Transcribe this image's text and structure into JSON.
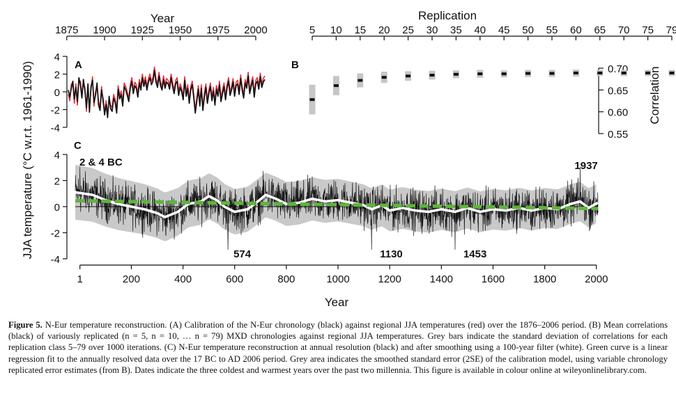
{
  "colors": {
    "axis": "#111111",
    "recon": "#111111",
    "instrumental": "#e8323c",
    "smooth": "#ffffff",
    "regression": "#5db53a",
    "error_band": "#c9c9c9",
    "sd_bar": "#c6c6c6"
  },
  "chart_data": [
    {
      "id": "A",
      "type": "line",
      "panel_label": "A",
      "title": "Year",
      "x_range": [
        1876,
        2006
      ],
      "y_range": [
        -4,
        4
      ],
      "x_ticks": [
        1875,
        1900,
        1925,
        1950,
        1975,
        2000
      ],
      "y_ticks": [
        -4,
        -2,
        0,
        2,
        4
      ],
      "series": [
        {
          "name": "N-Eur chronology",
          "color": "black",
          "step": 1,
          "values": [
            0.2,
            -0.6,
            0.4,
            1.2,
            -0.8,
            0.5,
            -1.1,
            1.6,
            0.8,
            -0.7,
            1.4,
            0.1,
            -1.8,
            0.9,
            -2.3,
            0.6,
            1.3,
            -1.2,
            -0.4,
            1.0,
            -1.5,
            -2.1,
            0.2,
            -0.8,
            -2.6,
            -1.4,
            -2.9,
            -0.5,
            -1.9,
            -2.2,
            -0.7,
            -1.2,
            -2.4,
            0.3,
            -0.8,
            -0.3,
            -1.6,
            0.6,
            0.2,
            -0.4,
            -1.1,
            0.4,
            1.2,
            -0.2,
            0.7,
            0.4,
            -0.6,
            1.0,
            0.2,
            1.6,
            0.6,
            1.3,
            0.2,
            1.1,
            1.6,
            0.8,
            1.2,
            2.4,
            1.1,
            0.5,
            1.8,
            0.7,
            0.2,
            1.4,
            0.4,
            1.1,
            0.9,
            0.3,
            1.6,
            0.6,
            -0.2,
            0.9,
            1.2,
            -0.4,
            0.5,
            0.0,
            -0.9,
            1.3,
            -0.5,
            0.4,
            -1.3,
            0.2,
            0.8,
            -0.7,
            -2.4,
            -1.1,
            0.3,
            -1.6,
            0.4,
            -2.1,
            -0.6,
            0.5,
            -1.3,
            -0.2,
            0.6,
            -1.0,
            0.1,
            -1.5,
            0.3,
            -0.5,
            0.8,
            -1.1,
            -0.2,
            0.6,
            -0.9,
            0.4,
            1.2,
            -0.4,
            0.2,
            1.1,
            -0.5,
            0.7,
            0.9,
            -0.3,
            1.5,
            0.2,
            -0.7,
            1.0,
            0.4,
            1.8,
            -0.2,
            0.6,
            1.3,
            -0.6,
            0.9,
            1.2,
            0.3,
            1.7,
            0.5,
            1.1,
            1.4
          ]
        },
        {
          "name": "Regional JJA temperatures",
          "color": "red",
          "step": 1,
          "values": [
            -0.3,
            -1.0,
            0.9,
            0.9,
            -1.3,
            0.9,
            -1.5,
            1.2,
            1.2,
            -0.3,
            1.0,
            0.5,
            -2.2,
            0.5,
            -1.9,
            0.2,
            1.7,
            -1.6,
            0.0,
            0.6,
            -1.1,
            -1.7,
            0.6,
            -1.2,
            -2.2,
            -1.0,
            -2.5,
            -0.9,
            -1.5,
            -1.8,
            -0.3,
            -0.8,
            -2.0,
            0.7,
            -0.4,
            0.1,
            -1.2,
            1.0,
            0.6,
            0.0,
            -0.7,
            0.8,
            1.6,
            0.2,
            1.1,
            0.8,
            -0.2,
            1.4,
            0.6,
            2.0,
            1.0,
            1.7,
            0.6,
            1.5,
            2.0,
            1.2,
            1.6,
            2.8,
            1.5,
            0.9,
            2.2,
            1.1,
            0.6,
            1.8,
            0.8,
            1.5,
            1.3,
            0.7,
            2.0,
            1.0,
            0.2,
            1.3,
            1.6,
            0.0,
            0.9,
            0.4,
            -0.5,
            1.7,
            -0.1,
            0.8,
            -0.9,
            0.6,
            1.2,
            -0.3,
            -2.0,
            -0.7,
            0.7,
            -1.2,
            0.8,
            -1.7,
            -0.2,
            0.9,
            -0.9,
            0.2,
            1.0,
            -0.6,
            0.5,
            -1.1,
            0.7,
            -0.1,
            1.2,
            -0.7,
            0.2,
            1.0,
            -0.5,
            0.8,
            1.6,
            0.0,
            0.6,
            1.5,
            -0.1,
            1.1,
            1.3,
            0.1,
            1.9,
            0.6,
            -0.3,
            1.4,
            0.8,
            2.2,
            0.2,
            1.0,
            1.7,
            -0.2,
            1.3,
            1.6,
            0.7,
            2.1,
            0.9,
            1.5,
            1.8
          ]
        }
      ]
    },
    {
      "id": "B",
      "type": "bar",
      "panel_label": "B",
      "title": "Replication",
      "ylabel": "Correlation",
      "y_range": [
        0.55,
        0.7
      ],
      "y_ticks": [
        0.55,
        0.6,
        0.65,
        0.7
      ],
      "categories": [
        "5",
        "10",
        "15",
        "20",
        "25",
        "30",
        "35",
        "40",
        "45",
        "50",
        "55",
        "60",
        "65",
        "70",
        "75",
        "79"
      ],
      "series": [
        {
          "name": "Mean correlation",
          "values": [
            0.628,
            0.66,
            0.672,
            0.679,
            0.682,
            0.684,
            0.686,
            0.687,
            0.687,
            0.688,
            0.688,
            0.689,
            0.689,
            0.689,
            0.689,
            0.689
          ]
        },
        {
          "name": "Standard deviation",
          "values": [
            0.034,
            0.022,
            0.016,
            0.013,
            0.011,
            0.01,
            0.009,
            0.009,
            0.008,
            0.008,
            0.008,
            0.008,
            0.007,
            0.007,
            0.007,
            0.007
          ]
        }
      ]
    },
    {
      "id": "C",
      "type": "line",
      "panel_label": "C",
      "xlabel": "Year",
      "ylabel": "JJA temperature (°C w.r.t. 1961-1990)",
      "x_range": [
        -17,
        2006
      ],
      "y_range": [
        -4,
        4
      ],
      "x_ticks": [
        1,
        200,
        400,
        600,
        800,
        1000,
        1200,
        1400,
        1600,
        1800,
        2000
      ],
      "y_ticks": [
        -4,
        -2,
        0,
        2,
        4
      ],
      "smoothed_100yr": {
        "x": [
          -17,
          50,
          100,
          150,
          200,
          250,
          300,
          330,
          380,
          420,
          470,
          500,
          530,
          560,
          600,
          650,
          690,
          720,
          760,
          800,
          850,
          900,
          950,
          1000,
          1050,
          1100,
          1130,
          1170,
          1200,
          1250,
          1300,
          1350,
          1400,
          1453,
          1500,
          1550,
          1600,
          1650,
          1700,
          1750,
          1800,
          1850,
          1900,
          1937,
          1970,
          2006
        ],
        "y": [
          1.1,
          0.9,
          0.5,
          0.2,
          0.0,
          -0.2,
          -0.5,
          -0.8,
          -0.4,
          0.2,
          0.4,
          0.8,
          0.5,
          0.0,
          -0.4,
          -0.2,
          0.4,
          0.9,
          0.6,
          0.2,
          0.3,
          0.6,
          0.4,
          0.5,
          0.3,
          0.1,
          -0.2,
          0.1,
          -0.3,
          -0.1,
          -0.3,
          -0.4,
          -0.2,
          -0.4,
          -0.1,
          -0.4,
          -0.2,
          -0.3,
          -0.1,
          -0.3,
          -0.1,
          -0.2,
          0.2,
          0.4,
          -0.1,
          0.3
        ]
      },
      "regression": {
        "x": [
          -17,
          2006
        ],
        "y": [
          0.45,
          -0.15
        ]
      },
      "error_band_2se": {
        "x": [
          -17,
          300,
          400,
          1100,
          1300,
          2006
        ],
        "upper_offset": [
          2.1,
          1.9,
          1.8,
          1.6,
          1.6,
          1.5
        ],
        "lower_offset": [
          -2.1,
          -1.9,
          -1.8,
          -1.6,
          -1.6,
          -1.5
        ]
      },
      "annotations": [
        {
          "text": "2 & 4 BC",
          "x": 1,
          "y": 3.4
        },
        {
          "text": "574",
          "x": 574,
          "y": -3.5
        },
        {
          "text": "1130",
          "x": 1130,
          "y": -3.5
        },
        {
          "text": "1453",
          "x": 1453,
          "y": -3.5
        },
        {
          "text": "1937",
          "x": 1937,
          "y": 3.2
        }
      ]
    }
  ],
  "caption": {
    "label": "Figure 5.",
    "text": "N-Eur temperature reconstruction. (A) Calibration of the N-Eur chronology (black) against regional JJA temperatures (red) over the 1876–2006 period. (B) Mean correlations (black) of variously replicated (n = 5, n = 10, … n = 79) MXD chronologies against regional JJA temperatures. Grey bars indicate the standard deviation of correlations for each replication class 5–79 over 1000 iterations. (C) N-Eur temperature reconstruction at annual resolution (black) and after smoothing using a 100-year filter (white). Green curve is a linear regression fit to the annually resolved data over the 17 BC to AD 2006 period. Grey area indicates the smoothed standard error (2SE) of the calibration model, using variable chronology replicated error estimates (from B). Dates indicate the three coldest and warmest years over the past two millennia. This figure is available in colour online at wileyonlinelibrary.com."
  }
}
